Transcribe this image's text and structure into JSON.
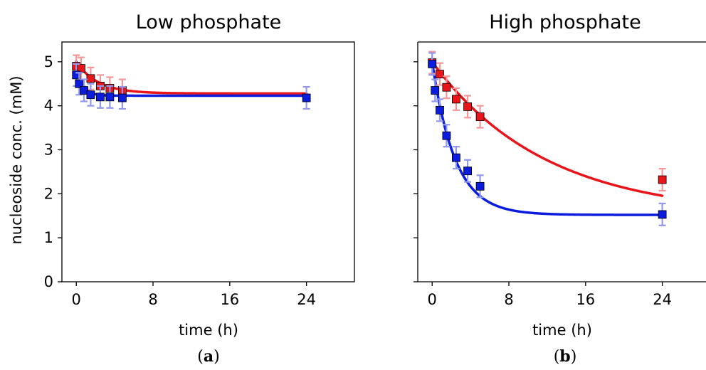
{
  "chart_data": [
    {
      "type": "scatter",
      "title": "Low phosphate",
      "xlabel": "time (h)",
      "ylabel": "nucleoside conc. (mM)",
      "xlim": [
        -1.5,
        29
      ],
      "ylim": [
        0,
        5.45
      ],
      "xticks": [
        0,
        8,
        16,
        24
      ],
      "yticks": [
        0,
        1,
        2,
        3,
        4,
        5
      ],
      "grid": false,
      "caption_letter": "a",
      "series": [
        {
          "color": "#e8161b",
          "points": [
            {
              "x": 0,
              "y": 4.9,
              "err": 0.25
            },
            {
              "x": 0.5,
              "y": 4.85,
              "err": 0.25
            },
            {
              "x": 1.5,
              "y": 4.62,
              "err": 0.25
            },
            {
              "x": 2.5,
              "y": 4.45,
              "err": 0.25
            },
            {
              "x": 3.5,
              "y": 4.4,
              "err": 0.25
            },
            {
              "x": 4.8,
              "y": 4.35,
              "err": 0.25
            }
          ],
          "fit": {
            "y0": 5.0,
            "yinf": 4.28,
            "k": 0.45
          }
        },
        {
          "color": "#0b1cdc",
          "points": [
            {
              "x": 0,
              "y": 4.7,
              "err": 0.25
            },
            {
              "x": 0.3,
              "y": 4.5,
              "err": 0.25
            },
            {
              "x": 0.8,
              "y": 4.35,
              "err": 0.25
            },
            {
              "x": 1.5,
              "y": 4.25,
              "err": 0.25
            },
            {
              "x": 2.5,
              "y": 4.2,
              "err": 0.25
            },
            {
              "x": 3.5,
              "y": 4.2,
              "err": 0.25
            },
            {
              "x": 4.8,
              "y": 4.18,
              "err": 0.25
            },
            {
              "x": 24,
              "y": 4.18,
              "err": 0.25
            }
          ],
          "fit": {
            "y0": 5.0,
            "yinf": 4.23,
            "k": 1.6
          }
        }
      ]
    },
    {
      "type": "scatter",
      "title": "High phosphate",
      "xlabel": "time (h)",
      "ylabel": "",
      "xlim": [
        -1.5,
        29
      ],
      "ylim": [
        0,
        5.45
      ],
      "xticks": [
        0,
        8,
        16,
        24
      ],
      "yticks": [
        0,
        1,
        2,
        3,
        4,
        5
      ],
      "grid": false,
      "caption_letter": "b",
      "series": [
        {
          "color": "#e8161b",
          "points": [
            {
              "x": 0,
              "y": 4.98,
              "err": 0.25
            },
            {
              "x": 0.8,
              "y": 4.72,
              "err": 0.25
            },
            {
              "x": 1.5,
              "y": 4.42,
              "err": 0.25
            },
            {
              "x": 2.5,
              "y": 4.15,
              "err": 0.25
            },
            {
              "x": 3.7,
              "y": 3.98,
              "err": 0.25
            },
            {
              "x": 5,
              "y": 3.75,
              "err": 0.25
            },
            {
              "x": 24,
              "y": 2.32,
              "err": 0.25
            }
          ],
          "fit": {
            "y0": 5.0,
            "yinf": 1.5,
            "k": 0.085
          }
        },
        {
          "color": "#0b1cdc",
          "points": [
            {
              "x": 0,
              "y": 4.95,
              "err": 0.25
            },
            {
              "x": 0.3,
              "y": 4.35,
              "err": 0.25
            },
            {
              "x": 0.8,
              "y": 3.9,
              "err": 0.25
            },
            {
              "x": 1.5,
              "y": 3.32,
              "err": 0.25
            },
            {
              "x": 2.5,
              "y": 2.82,
              "err": 0.25
            },
            {
              "x": 3.7,
              "y": 2.52,
              "err": 0.25
            },
            {
              "x": 5,
              "y": 2.17,
              "err": 0.25
            },
            {
              "x": 24,
              "y": 1.53,
              "err": 0.25
            }
          ],
          "fit": {
            "y0": 5.0,
            "yinf": 1.52,
            "k": 0.42
          }
        }
      ]
    }
  ]
}
